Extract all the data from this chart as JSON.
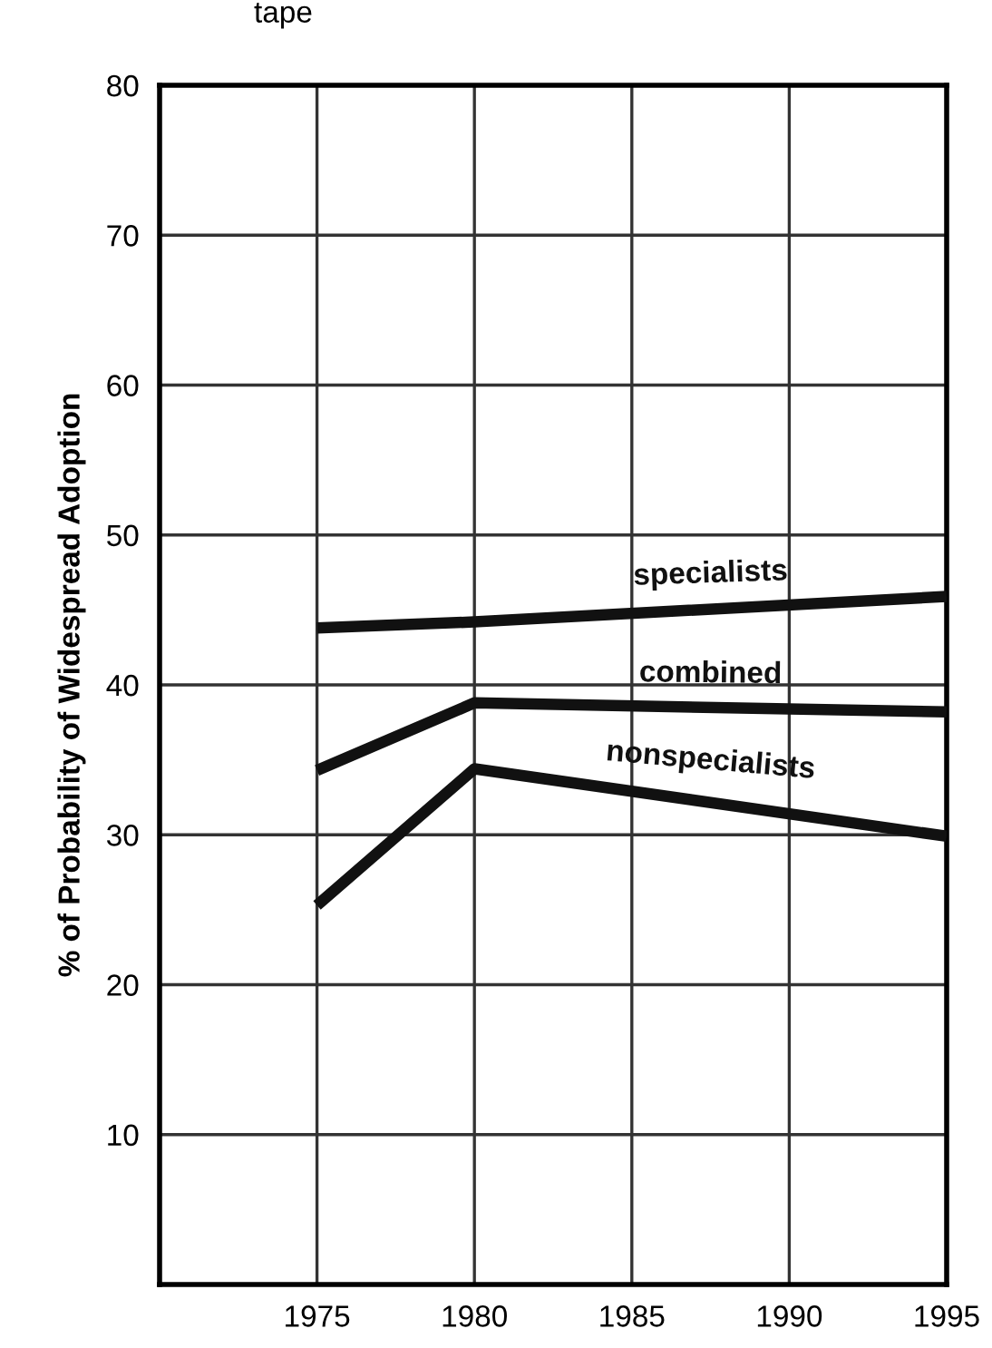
{
  "chart_data": {
    "type": "line",
    "ylabel": "% of Probability of Widespread Adoption",
    "annotations": [
      "tape"
    ],
    "x": [
      1975,
      1980,
      1995
    ],
    "series": [
      {
        "name": "specialists",
        "color": "#111111",
        "values": [
          43.8,
          44.2,
          45.9
        ]
      },
      {
        "name": "combined",
        "color": "#111111",
        "values": [
          34.3,
          38.8,
          38.2
        ]
      },
      {
        "name": "nonspecialists",
        "color": "#111111",
        "values": [
          25.3,
          34.4,
          29.9
        ]
      }
    ],
    "xlim": [
      1970,
      1995
    ],
    "xticks": [
      1975,
      1980,
      1985,
      1990,
      1995
    ],
    "ylim": [
      0,
      80
    ],
    "yticks": [
      10,
      20,
      30,
      40,
      50,
      60,
      70,
      80
    ],
    "grid": true,
    "marker": "none",
    "line_style": "solid",
    "legend": false
  }
}
